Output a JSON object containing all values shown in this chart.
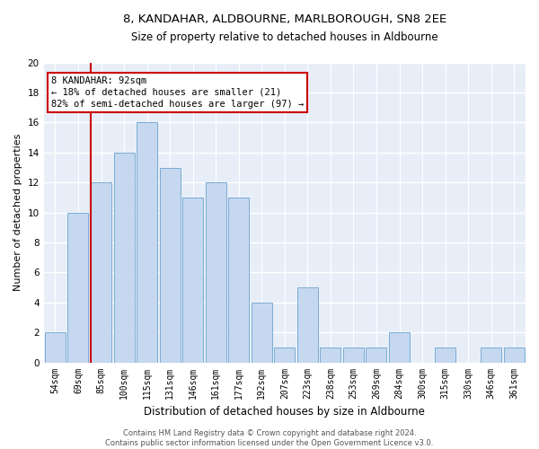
{
  "title": "8, KANDAHAR, ALDBOURNE, MARLBOROUGH, SN8 2EE",
  "subtitle": "Size of property relative to detached houses in Aldbourne",
  "xlabel": "Distribution of detached houses by size in Aldbourne",
  "ylabel": "Number of detached properties",
  "bar_labels": [
    "54sqm",
    "69sqm",
    "85sqm",
    "100sqm",
    "115sqm",
    "131sqm",
    "146sqm",
    "161sqm",
    "177sqm",
    "192sqm",
    "207sqm",
    "223sqm",
    "238sqm",
    "253sqm",
    "269sqm",
    "284sqm",
    "300sqm",
    "315sqm",
    "330sqm",
    "346sqm",
    "361sqm"
  ],
  "bar_values": [
    2,
    10,
    12,
    14,
    16,
    13,
    11,
    12,
    11,
    4,
    1,
    5,
    1,
    1,
    1,
    2,
    0,
    1,
    0,
    1,
    1
  ],
  "bar_color": "#c5d8f0",
  "bar_edge_color": "#7aadd4",
  "vline_color": "#cc0000",
  "vline_bar_index": 2,
  "annotation_text": "8 KANDAHAR: 92sqm\n← 18% of detached houses are smaller (21)\n82% of semi-detached houses are larger (97) →",
  "annotation_box_color": "#cc0000",
  "ylim": [
    0,
    20
  ],
  "yticks": [
    0,
    2,
    4,
    6,
    8,
    10,
    12,
    14,
    16,
    18,
    20
  ],
  "footer": "Contains HM Land Registry data © Crown copyright and database right 2024.\nContains public sector information licensed under the Open Government Licence v3.0.",
  "bg_color": "#e8eef8",
  "grid_color": "#ffffff",
  "title_fontsize": 9.5,
  "subtitle_fontsize": 8.5,
  "tick_fontsize": 7,
  "ylabel_fontsize": 8,
  "xlabel_fontsize": 8.5,
  "annotation_fontsize": 7.5,
  "footer_fontsize": 6
}
